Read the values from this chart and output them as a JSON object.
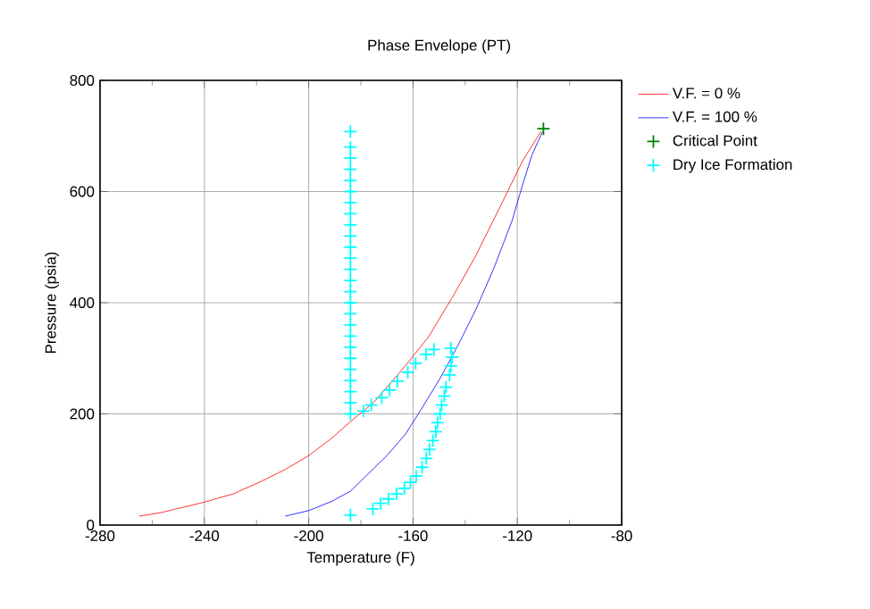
{
  "chart_data": {
    "type": "line",
    "title": "Phase Envelope (PT)",
    "xlabel": "Temperature (F)",
    "ylabel": "Pressure (psia)",
    "xlim": [
      -280,
      -80
    ],
    "xticks": [
      -280,
      -240,
      -200,
      -160,
      -120,
      -80
    ],
    "ylim": [
      0,
      800
    ],
    "yticks": [
      0,
      200,
      400,
      600,
      800
    ],
    "grid": true,
    "legend": "right",
    "series": [
      {
        "name": "V.F. = 0 %",
        "color": "#ff0000",
        "marker": "none",
        "x": [
          -265,
          -257,
          -241,
          -229,
          -218,
          -209,
          -200,
          -191,
          -184,
          -175,
          -163,
          -154,
          -145,
          -136,
          -127,
          -118,
          -111
        ],
        "values": [
          16,
          22,
          40,
          56,
          79,
          100,
          125,
          157,
          186,
          221,
          286,
          339,
          409,
          484,
          569,
          655,
          708
        ]
      },
      {
        "name": "V.F. = 100 %",
        "color": "#0000ff",
        "marker": "none",
        "x": [
          -209,
          -200,
          -191,
          -184,
          -177,
          -170,
          -163,
          -156.5,
          -149.6,
          -142.8,
          -136,
          -129,
          -122,
          -118,
          -114.4,
          -110.3
        ],
        "values": [
          16,
          26,
          43,
          61,
          93,
          125,
          163,
          211,
          264,
          323,
          387,
          462,
          548,
          612,
          666,
          708
        ]
      },
      {
        "name": "Critical Point",
        "type": "scatter",
        "color": "#008000",
        "marker": "cross",
        "x": [
          -110
        ],
        "values": [
          713
        ]
      },
      {
        "name": "Dry Ice Formation",
        "type": "scatter",
        "color": "#00ffff",
        "marker": "cross",
        "x": [
          -184,
          -184,
          -184,
          -184,
          -184,
          -184,
          -184,
          -184,
          -184,
          -184,
          -184,
          -184,
          -184,
          -184,
          -184,
          -184,
          -184,
          -184,
          -184,
          -184,
          -184,
          -184,
          -184,
          -184,
          -184,
          -184,
          -179,
          -176,
          -172,
          -169,
          -166,
          -162,
          -159,
          -155,
          -152,
          -145.5,
          -145,
          -145.5,
          -146,
          -147.4,
          -148,
          -149,
          -149.6,
          -150.6,
          -151.3,
          -152.4,
          -153.7,
          -154.9,
          -156.5,
          -158.8,
          -161,
          -163.3,
          -166.3,
          -169.4,
          -172.4,
          -175.4,
          -184
        ],
        "values": [
          200,
          220,
          240,
          260,
          280,
          300,
          320,
          340,
          360,
          380,
          400,
          420,
          440,
          460,
          480,
          500,
          520,
          540,
          560,
          580,
          600,
          620,
          640,
          660,
          680,
          708,
          205,
          216,
          229,
          243,
          259,
          275,
          291,
          307,
          316,
          318,
          302,
          286,
          270,
          248,
          232,
          216,
          200,
          184,
          168,
          152,
          136,
          120,
          104,
          88,
          77,
          66,
          56,
          47,
          39,
          29,
          18
        ]
      }
    ]
  }
}
